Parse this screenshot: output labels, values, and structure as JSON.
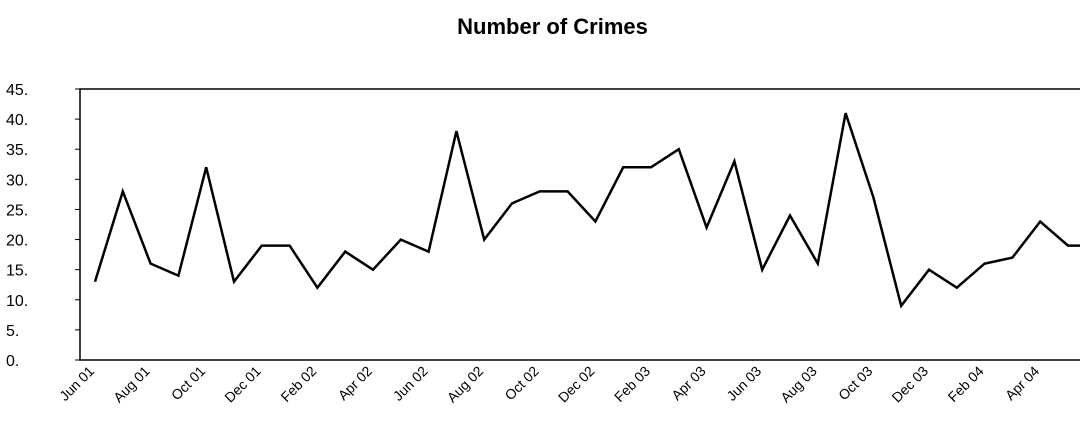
{
  "chart_data": {
    "type": "line",
    "title": "Number of Crimes",
    "xlabel": "",
    "ylabel": "",
    "ylim": [
      0,
      45
    ],
    "yticks": [
      "0.",
      "5.",
      "10.",
      "15.",
      "20.",
      "25.",
      "30.",
      "35.",
      "40.",
      "45."
    ],
    "grid": false,
    "legend": "none",
    "categories": [
      "Jun 01",
      "Jul 01",
      "Aug 01",
      "Sep 01",
      "Oct 01",
      "Nov 01",
      "Dec 01",
      "Jan 02",
      "Feb 02",
      "Mar 02",
      "Apr 02",
      "May 02",
      "Jun 02",
      "Jul 02",
      "Aug 02",
      "Sep 02",
      "Oct 02",
      "Nov 02",
      "Dec 02",
      "Jan 03",
      "Feb 03",
      "Mar 03",
      "Apr 03",
      "May 03",
      "Jun 03",
      "Jul 03",
      "Aug 03",
      "Sep 03",
      "Oct 03",
      "Nov 03",
      "Dec 03",
      "Jan 04",
      "Feb 04",
      "Mar 04",
      "Apr 04",
      "May 04",
      "Jun 04"
    ],
    "xtick_labels": [
      "Jun 01",
      "Aug 01",
      "Oct 01",
      "Dec 01",
      "Feb 02",
      "Apr 02",
      "Jun 02",
      "Aug 02",
      "Oct 02",
      "Dec 02",
      "Feb 03",
      "Apr 03",
      "Jun 03",
      "Aug 03",
      "Oct 03",
      "Dec 03",
      "Feb 04",
      "Apr 04"
    ],
    "series": [
      {
        "values": [
          13,
          28,
          16,
          14,
          32,
          13,
          19,
          19,
          12,
          18,
          15,
          20,
          18,
          38,
          20,
          26,
          28,
          28,
          23,
          32,
          32,
          35,
          22,
          33,
          15,
          24,
          16,
          41,
          27,
          9,
          15,
          12,
          16,
          17,
          23,
          19,
          19
        ],
        "color": "#000000"
      }
    ]
  }
}
